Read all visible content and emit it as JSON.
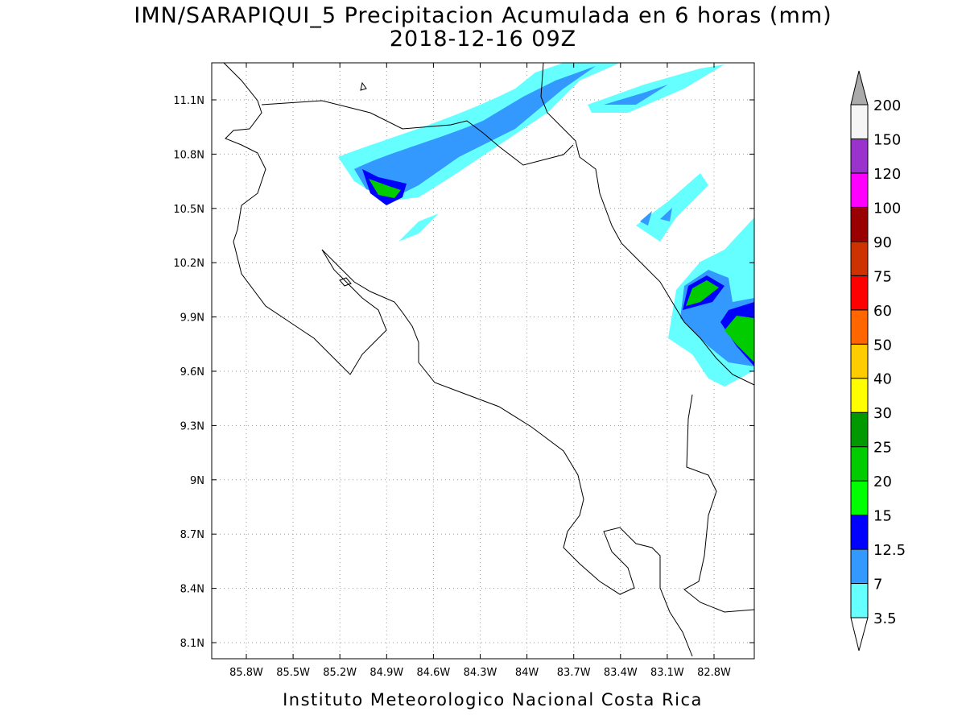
{
  "header": {
    "title": "IMN/SARAPIQUI_5 Precipitacion Acumulada en 6 horas (mm)",
    "subtitle": "2018-12-16 09Z"
  },
  "map": {
    "lon_ticks": [
      "85.8W",
      "85.5W",
      "85.2W",
      "84.9W",
      "84.6W",
      "84.3W",
      "84W",
      "83.7W",
      "83.4W",
      "83.1W",
      "82.8W"
    ],
    "lat_ticks": [
      "11.1N",
      "10.8N",
      "10.5N",
      "10.2N",
      "9.9N",
      "9.6N",
      "9.3N",
      "9N",
      "8.7N",
      "8.4N",
      "8.1N"
    ]
  },
  "legend": {
    "labels": [
      "3.5",
      "7",
      "12.5",
      "15",
      "20",
      "25",
      "30",
      "40",
      "50",
      "60",
      "75",
      "90",
      "100",
      "120",
      "150",
      "200"
    ],
    "colors": [
      "#66ffff",
      "#3399ff",
      "#0000ff",
      "#00ff00",
      "#00cc00",
      "#009900",
      "#ffff00",
      "#ffcc00",
      "#ff6600",
      "#ff0000",
      "#cc3300",
      "#990000",
      "#ff00ff",
      "#9933cc",
      "#f5f5f5"
    ]
  },
  "footer": "Instituto Meteorologico Nacional Costa Rica"
}
